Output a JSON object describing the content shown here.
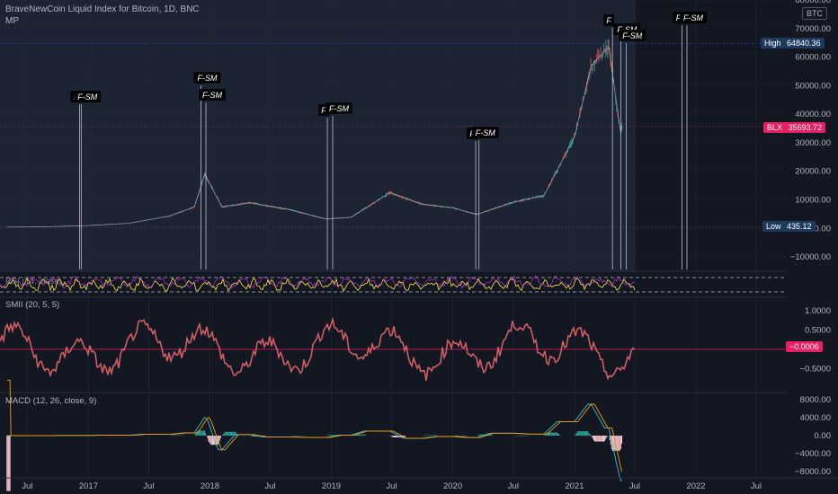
{
  "header": {
    "symbol": "BraveNewCoin Liquid Index for Bitcoin, 1D, BNC",
    "indicator": "MP",
    "currency": "BTC"
  },
  "price_axis": {
    "ticks": [
      "80000.00",
      "70000.00",
      "60000.00",
      "50000.00",
      "40000.00",
      "30000.00",
      "20000.00",
      "10000.00",
      "0.00",
      "−10000.00"
    ]
  },
  "badges": {
    "high": {
      "label": "High",
      "value": "64840.36"
    },
    "last": {
      "label": "BLX",
      "value": "35693.72"
    },
    "low": {
      "label": "Low",
      "value": "435.12"
    }
  },
  "signals": {
    "f": "F",
    "fsm": "F-SM"
  },
  "rsi": {
    "title": "RSI (14, close)"
  },
  "smii": {
    "title": "SMII (20, 5, 5)",
    "ticks": [
      "1.0000",
      "0.5000",
      "−0.5000"
    ],
    "last_value": "−0.0006"
  },
  "macd": {
    "title": "MACD (12, 26, close, 9)",
    "ticks": [
      "8000.00",
      "4000.00",
      "0.00",
      "−4000.00",
      "−8000.00"
    ]
  },
  "time_axis": {
    "ticks": [
      "Jul",
      "2017",
      "Jul",
      "2018",
      "Jul",
      "2019",
      "Jul",
      "2020",
      "Jul",
      "2021",
      "Jul",
      "2022",
      "Jul"
    ]
  },
  "colors": {
    "background": "#131722",
    "candles": "#7a8fa8",
    "signal_box": "#000000",
    "high_badge": "#1e3a5f",
    "last_badge": "#e91e63",
    "low_badge": "#1e3a5f",
    "smii_line": "#ef5350",
    "rsi_line": "#ffeb3b",
    "macd_line": "#26c6da",
    "macd_signal": "#ff9800"
  },
  "chart_data": {
    "type": "line",
    "title": "BraveNewCoin Liquid Index for Bitcoin, 1D, BNC",
    "x": [
      "2016-05-01",
      "2016-09-01",
      "2017-01-01",
      "2017-05-01",
      "2017-09-01",
      "2017-11-15",
      "2017-12-17",
      "2018-02-06",
      "2018-05-01",
      "2018-09-01",
      "2018-12-15",
      "2019-03-01",
      "2019-06-26",
      "2019-10-01",
      "2020-01-01",
      "2020-03-13",
      "2020-07-01",
      "2020-10-01",
      "2021-01-01",
      "2021-02-20",
      "2021-04-14",
      "2021-05-19",
      "2021-05-25"
    ],
    "series": [
      {
        "values": [
          450,
          600,
          1000,
          1800,
          4300,
          7500,
          19000,
          7500,
          9000,
          6500,
          3300,
          3900,
          12500,
          8500,
          7200,
          4900,
          9200,
          11500,
          32000,
          57000,
          63500,
          34000,
          35700
        ]
      }
    ],
    "ylim": [
      -15000,
      80000
    ],
    "high": 64840.36,
    "low": 435.12,
    "last": 35693.72,
    "signal_dates": [
      "2016-12-05",
      "2016-12-10",
      "2017-12-05",
      "2017-12-20",
      "2018-12-20",
      "2019-01-05",
      "2020-03-10",
      "2020-03-20",
      "2021-04-25",
      "2021-05-20",
      "2021-06-05",
      "2021-11-20",
      "2021-12-05"
    ],
    "smii_ylim": [
      -1,
      1.25
    ],
    "macd_ylim": [
      -9000,
      9000
    ]
  }
}
